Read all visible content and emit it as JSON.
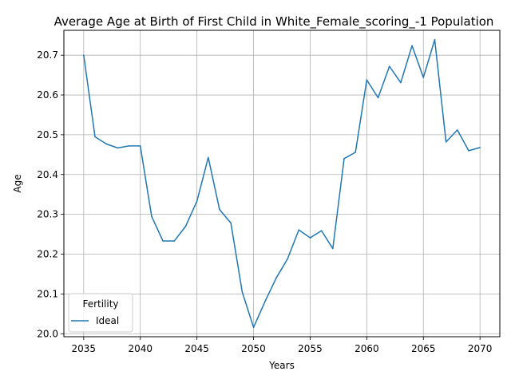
{
  "chart_data": {
    "type": "line",
    "title": "Average Age at Birth of First Child in White_Female_scoring_-1 Population",
    "xlabel": "Years",
    "ylabel": "Age",
    "xlim": [
      2033.25,
      2071.75
    ],
    "ylim": [
      19.9925,
      20.7625
    ],
    "x_ticks": [
      2035,
      2040,
      2045,
      2050,
      2055,
      2060,
      2065,
      2070
    ],
    "y_ticks": [
      20.0,
      20.1,
      20.2,
      20.3,
      20.4,
      20.5,
      20.6,
      20.7
    ],
    "x_tick_labels": [
      "2035",
      "2040",
      "2045",
      "2050",
      "2055",
      "2060",
      "2065",
      "2070"
    ],
    "y_tick_labels": [
      "20.0",
      "20.1",
      "20.2",
      "20.3",
      "20.4",
      "20.5",
      "20.6",
      "20.7"
    ],
    "grid": true,
    "legend": {
      "title": "Fertility",
      "placement": "lower-left"
    },
    "x": [
      2035,
      2036,
      2037,
      2038,
      2039,
      2040,
      2041,
      2042,
      2043,
      2044,
      2045,
      2046,
      2047,
      2048,
      2049,
      2050,
      2051,
      2052,
      2053,
      2054,
      2055,
      2056,
      2057,
      2058,
      2059,
      2060,
      2061,
      2062,
      2063,
      2064,
      2065,
      2066,
      2067,
      2068,
      2069,
      2070
    ],
    "series": [
      {
        "name": "Ideal",
        "color": "#1f77b4",
        "values": [
          20.7,
          20.495,
          20.477,
          20.467,
          20.472,
          20.472,
          20.295,
          20.233,
          20.233,
          20.27,
          20.333,
          20.443,
          20.312,
          20.278,
          20.105,
          20.016,
          20.08,
          20.14,
          20.188,
          20.261,
          20.241,
          20.259,
          20.214,
          20.44,
          20.456,
          20.638,
          20.593,
          20.672,
          20.631,
          20.724,
          20.644,
          20.739,
          20.482,
          20.512,
          20.46,
          20.468
        ]
      }
    ]
  }
}
